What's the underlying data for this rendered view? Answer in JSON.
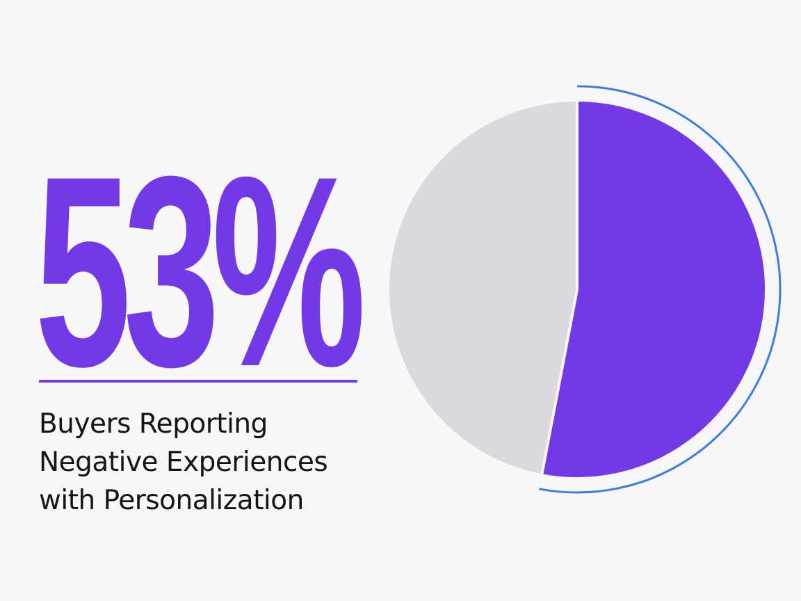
{
  "headline": {
    "value": "53%",
    "caption_lines": [
      "Buyers Reporting",
      "Negative Experiences",
      "with Personalization"
    ]
  },
  "colors": {
    "accent": "#7339e6",
    "remainder": "#d9d9de",
    "outline_arc": "#3b7ce0",
    "text": "#151515",
    "background": "#f7f7f9"
  },
  "chart_data": {
    "type": "pie",
    "title": "",
    "slices": [
      {
        "label": "",
        "value": 53,
        "color": "#7339e6"
      },
      {
        "label": "",
        "value": 47,
        "color": "#d9d9de"
      }
    ],
    "legend": "none"
  }
}
